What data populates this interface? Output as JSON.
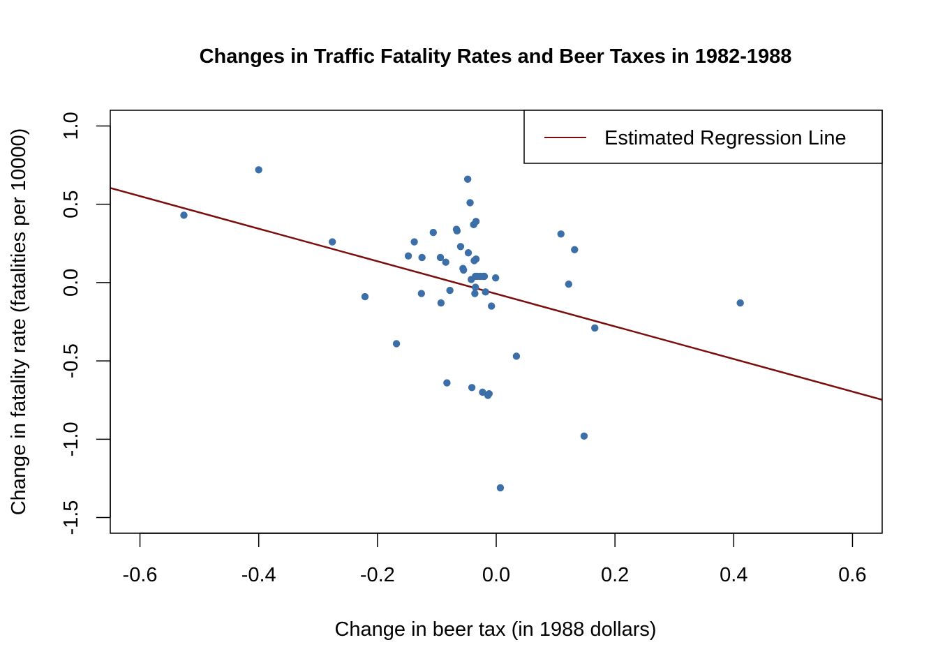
{
  "chart_data": {
    "type": "scatter",
    "title": "Changes in Traffic Fatality Rates and Beer Taxes in 1982-1988",
    "xlabel": "Change in beer tax (in 1988 dollars)",
    "ylabel": "Change in fatality rate (fatalities per 10000)",
    "xlim": [
      -0.65,
      0.65
    ],
    "ylim": [
      -1.6,
      1.1
    ],
    "xticks": [
      -0.6,
      -0.4,
      -0.2,
      0.0,
      0.2,
      0.4,
      0.6
    ],
    "xtick_labels": [
      "-0.6",
      "-0.4",
      "-0.2",
      "0.0",
      "0.2",
      "0.4",
      "0.6"
    ],
    "yticks": [
      -1.5,
      -1.0,
      -0.5,
      0.0,
      0.5,
      1.0
    ],
    "ytick_labels": [
      "-1.5",
      "-1.0",
      "-0.5",
      "0.0",
      "0.5",
      "1.0"
    ],
    "grid": false,
    "legend": {
      "position": "top-right",
      "entries": [
        {
          "label": "Estimated Regression Line",
          "color": "#7b0d0d"
        }
      ]
    },
    "regression_line": {
      "intercept": -0.072,
      "slope": -1.04,
      "color": "#7b0d0d"
    },
    "point_color": "#3c6ea8",
    "series": [
      {
        "name": "states",
        "x": [
          -0.526,
          -0.4,
          -0.276,
          -0.221,
          -0.168,
          -0.148,
          -0.138,
          -0.126,
          -0.125,
          -0.106,
          -0.094,
          -0.093,
          -0.085,
          -0.083,
          -0.078,
          -0.067,
          -0.066,
          -0.06,
          -0.056,
          -0.055,
          -0.048,
          -0.047,
          -0.044,
          -0.042,
          -0.041,
          -0.038,
          -0.037,
          -0.036,
          -0.035,
          -0.035,
          -0.034,
          -0.034,
          -0.032,
          -0.027,
          -0.023,
          -0.022,
          -0.02,
          -0.018,
          -0.014,
          -0.012,
          -0.008,
          -0.001,
          0.007,
          0.034,
          0.109,
          0.122,
          0.132,
          0.148,
          0.166,
          0.411
        ],
        "y": [
          0.43,
          0.72,
          0.26,
          -0.09,
          -0.39,
          0.17,
          0.26,
          -0.07,
          0.16,
          0.32,
          0.16,
          -0.13,
          0.13,
          -0.64,
          -0.05,
          0.34,
          0.33,
          0.23,
          0.09,
          0.08,
          0.66,
          0.19,
          0.51,
          0.02,
          -0.67,
          0.37,
          0.14,
          -0.07,
          0.04,
          -0.03,
          0.39,
          0.15,
          0.04,
          0.04,
          -0.7,
          0.04,
          0.04,
          -0.06,
          -0.72,
          -0.71,
          -0.15,
          0.03,
          -1.31,
          -0.47,
          0.31,
          -0.01,
          0.21,
          -0.98,
          -0.29,
          -0.13
        ]
      }
    ]
  }
}
